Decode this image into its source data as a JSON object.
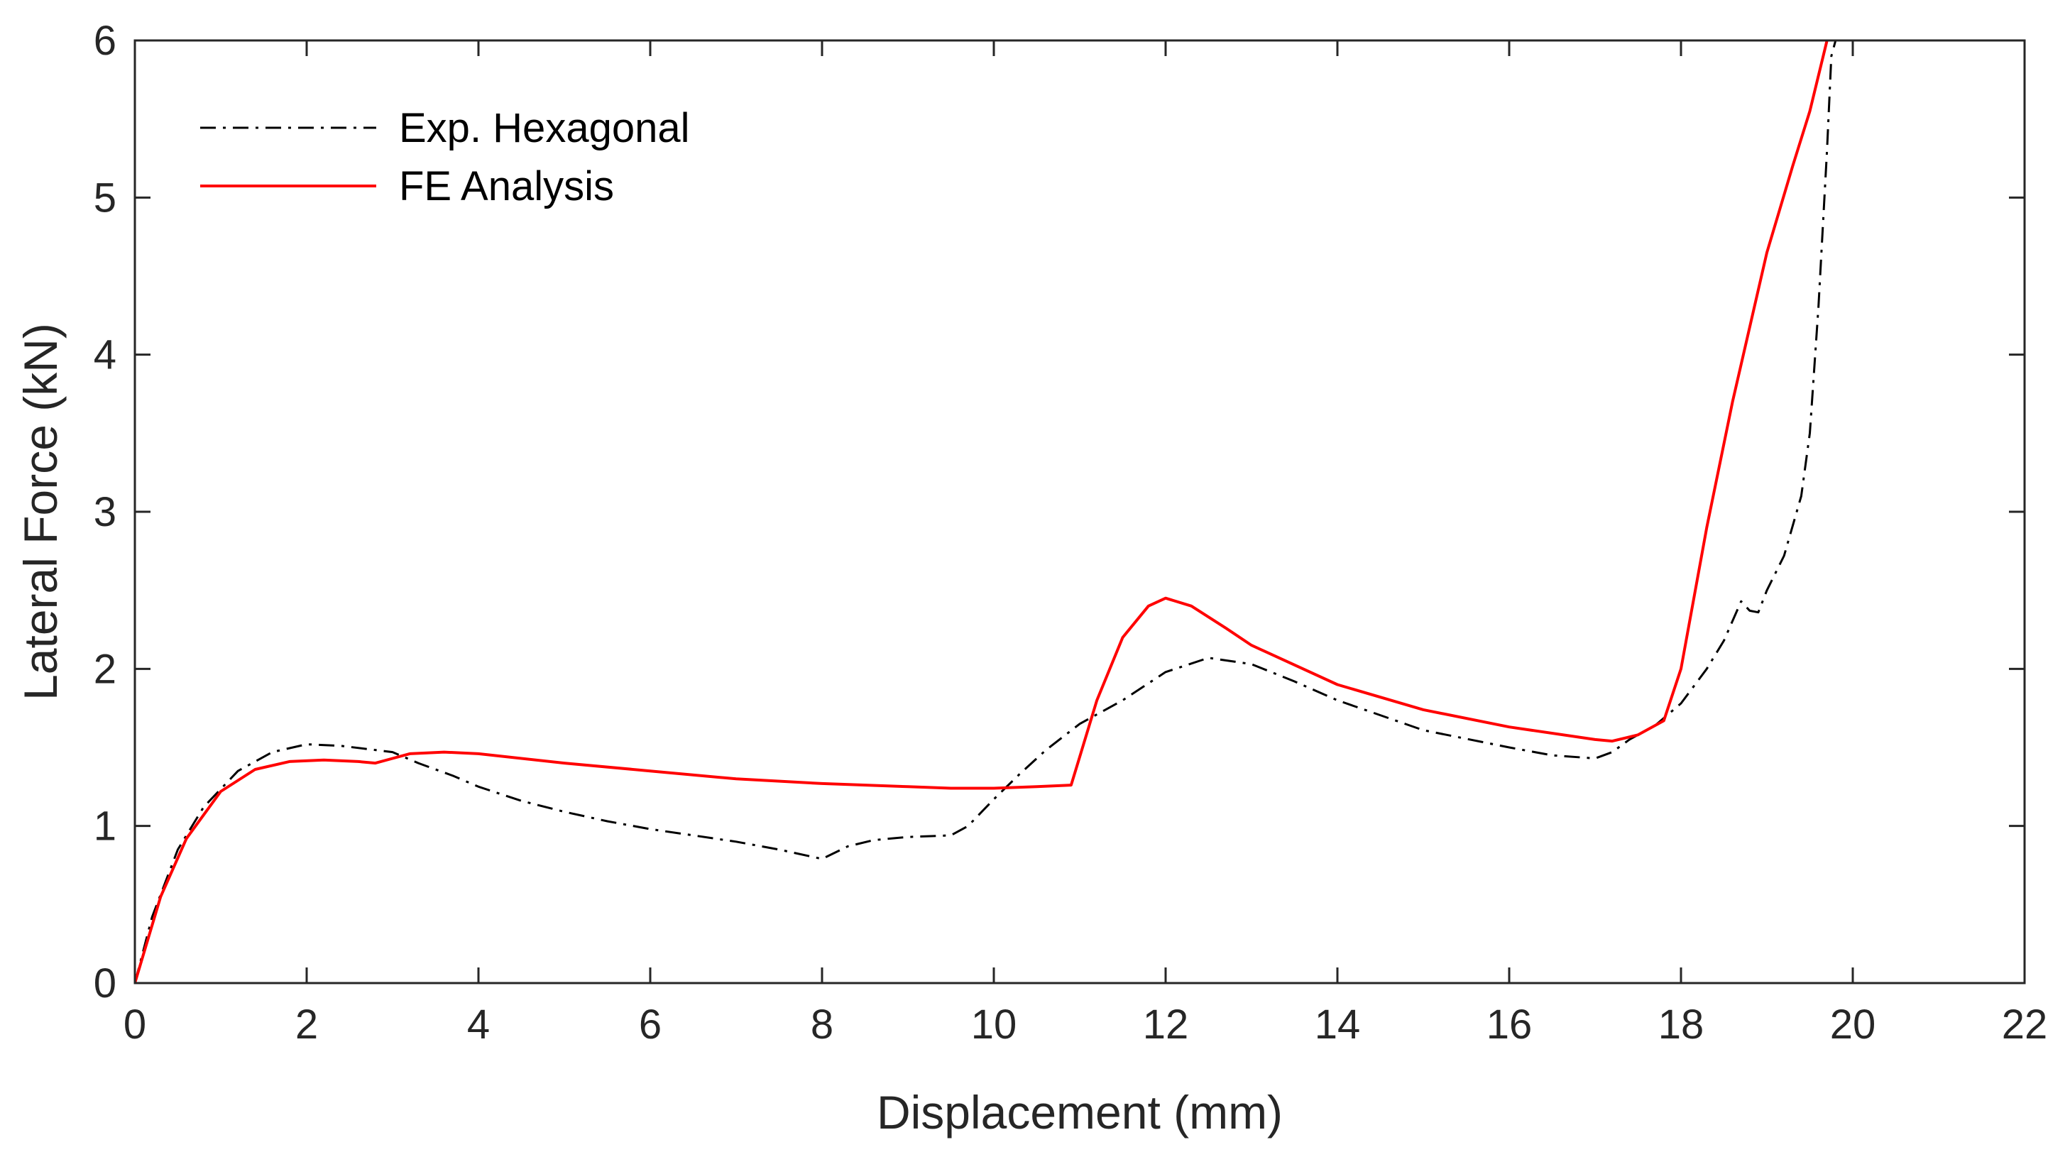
{
  "chart_data": {
    "type": "line",
    "title": "",
    "xlabel": "Displacement (mm)",
    "ylabel": "Lateral Force (kN)",
    "xlim": [
      0,
      22
    ],
    "ylim": [
      0,
      6
    ],
    "xticks": [
      0,
      2,
      4,
      6,
      8,
      10,
      12,
      14,
      16,
      18,
      20,
      22
    ],
    "yticks": [
      0,
      1,
      2,
      3,
      4,
      5,
      6
    ],
    "grid": false,
    "legend_position": "top-left",
    "series": [
      {
        "name": "Exp. Hexagonal",
        "color": "#000000",
        "style": "dash-dot",
        "x": [
          0,
          0.2,
          0.5,
          0.8,
          1.2,
          1.6,
          2.0,
          2.4,
          3.0,
          3.3,
          3.7,
          4.0,
          4.5,
          5.0,
          5.5,
          6.0,
          6.5,
          7.0,
          7.5,
          8.0,
          8.3,
          8.6,
          9.0,
          9.5,
          9.7,
          10.0,
          10.3,
          10.6,
          11.0,
          11.5,
          12.0,
          12.5,
          13.0,
          13.5,
          14.0,
          15.0,
          16.0,
          16.5,
          17.0,
          17.2,
          17.4,
          17.7,
          18.0,
          18.3,
          18.5,
          18.7,
          18.8,
          18.9,
          19.0,
          19.2,
          19.4,
          19.5,
          19.6,
          19.7,
          19.75,
          19.8
        ],
        "y": [
          0,
          0.42,
          0.85,
          1.12,
          1.35,
          1.47,
          1.52,
          1.51,
          1.47,
          1.4,
          1.32,
          1.25,
          1.16,
          1.09,
          1.03,
          0.98,
          0.94,
          0.9,
          0.85,
          0.79,
          0.87,
          0.91,
          0.93,
          0.94,
          1.0,
          1.17,
          1.33,
          1.48,
          1.65,
          1.8,
          1.98,
          2.07,
          2.03,
          1.92,
          1.8,
          1.61,
          1.5,
          1.45,
          1.43,
          1.47,
          1.55,
          1.64,
          1.78,
          2.0,
          2.18,
          2.43,
          2.37,
          2.36,
          2.5,
          2.72,
          3.1,
          3.5,
          4.3,
          5.3,
          5.9,
          6.0
        ]
      },
      {
        "name": "FE Analysis",
        "color": "#ff0000",
        "style": "solid",
        "x": [
          0,
          0.3,
          0.6,
          1.0,
          1.4,
          1.8,
          2.2,
          2.6,
          2.8,
          3.0,
          3.2,
          3.6,
          4.0,
          5.0,
          6.0,
          7.0,
          8.0,
          9.0,
          9.5,
          10.0,
          10.5,
          10.9,
          11.2,
          11.5,
          11.8,
          12.0,
          12.3,
          12.7,
          13.0,
          14.0,
          15.0,
          16.0,
          17.0,
          17.2,
          17.5,
          17.8,
          18.0,
          18.3,
          18.6,
          19.0,
          19.3,
          19.5,
          19.7
        ],
        "y": [
          0,
          0.55,
          0.92,
          1.22,
          1.36,
          1.41,
          1.42,
          1.41,
          1.4,
          1.43,
          1.46,
          1.47,
          1.46,
          1.4,
          1.35,
          1.3,
          1.27,
          1.25,
          1.24,
          1.24,
          1.25,
          1.26,
          1.8,
          2.2,
          2.4,
          2.45,
          2.4,
          2.26,
          2.15,
          1.9,
          1.74,
          1.63,
          1.55,
          1.54,
          1.58,
          1.67,
          2.0,
          2.9,
          3.7,
          4.65,
          5.2,
          5.55,
          6.0
        ]
      }
    ]
  }
}
